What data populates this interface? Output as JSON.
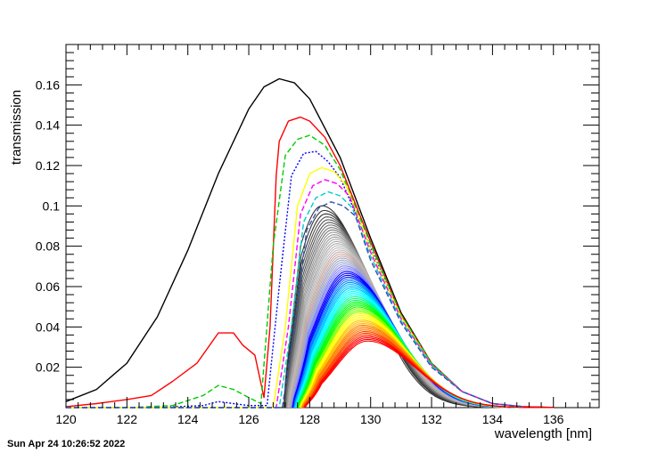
{
  "chart_data": {
    "type": "line",
    "title": "",
    "xlabel": "wavelength [nm]",
    "ylabel": "transmission",
    "xlim": [
      120,
      137.5
    ],
    "ylim": [
      0,
      0.18
    ],
    "x_ticks": [
      120,
      122,
      124,
      126,
      128,
      130,
      132,
      134,
      136
    ],
    "x_tick_labels": [
      "120",
      "122",
      "124",
      "126",
      "128",
      "130",
      "132",
      "134",
      "136"
    ],
    "y_ticks": [
      0.02,
      0.04,
      0.06,
      0.08,
      0.1,
      0.12,
      0.14,
      0.16
    ],
    "y_tick_labels": [
      "0.02",
      "0.04",
      "0.06",
      "0.08",
      "0.1",
      "0.12",
      "0.14",
      "0.16"
    ],
    "grid": false,
    "legend": "none",
    "series": [
      {
        "color": "#000000",
        "style": "solid",
        "x": [
          120,
          121,
          122,
          123,
          124,
          125,
          126,
          126.5,
          127,
          127.5,
          128,
          129,
          130,
          131,
          132,
          133,
          134,
          135,
          136
        ],
        "y": [
          0.003,
          0.009,
          0.022,
          0.045,
          0.078,
          0.116,
          0.148,
          0.159,
          0.163,
          0.161,
          0.153,
          0.124,
          0.084,
          0.047,
          0.022,
          0.008,
          0.002,
          0.0005,
          0.0001
        ]
      },
      {
        "color": "#ff0000",
        "style": "solid",
        "x": [
          120,
          121,
          122,
          122.8,
          123.5,
          124.3,
          125,
          125.5,
          125.8,
          126.2,
          126.5,
          126.7,
          126.9,
          127,
          127.3,
          127.7,
          128,
          128.5,
          129,
          130,
          131,
          132,
          133,
          134,
          135,
          136
        ],
        "y": [
          0.0005,
          0.002,
          0.004,
          0.006,
          0.013,
          0.022,
          0.037,
          0.037,
          0.031,
          0.026,
          0.005,
          0.04,
          0.115,
          0.132,
          0.142,
          0.144,
          0.142,
          0.134,
          0.12,
          0.082,
          0.046,
          0.022,
          0.008,
          0.002,
          0.0005,
          0.0001
        ]
      },
      {
        "color": "#00cc00",
        "style": "dashed",
        "x": [
          120,
          122,
          123.5,
          124.5,
          125,
          125.5,
          126,
          126.4,
          126.8,
          127.2,
          127.6,
          128,
          128.5,
          129,
          130,
          131,
          132,
          133,
          134,
          135
        ],
        "y": [
          0,
          0,
          0.001,
          0.006,
          0.011,
          0.009,
          0.005,
          0.002,
          0.08,
          0.125,
          0.133,
          0.135,
          0.13,
          0.118,
          0.081,
          0.046,
          0.022,
          0.008,
          0.002,
          0.0005
        ]
      },
      {
        "color": "#0000ff",
        "style": "dotted",
        "x": [
          120,
          123,
          124.5,
          125,
          125.5,
          126,
          126.6,
          127,
          127.4,
          127.8,
          128.2,
          128.6,
          129,
          130,
          131,
          132,
          133,
          134,
          135
        ],
        "y": [
          0,
          0,
          0.001,
          0.003,
          0.002,
          0.001,
          0.001,
          0.06,
          0.115,
          0.126,
          0.127,
          0.122,
          0.114,
          0.079,
          0.045,
          0.021,
          0.008,
          0.002,
          0.0005
        ]
      },
      {
        "color": "#ffff00",
        "style": "solid",
        "x": [
          120,
          126.8,
          127.2,
          127.6,
          128,
          128.4,
          128.8,
          129.2,
          130,
          131,
          132,
          133,
          134,
          135
        ],
        "y": [
          0,
          0,
          0.04,
          0.1,
          0.116,
          0.119,
          0.117,
          0.11,
          0.078,
          0.045,
          0.021,
          0.008,
          0.002,
          0.0005
        ]
      },
      {
        "color": "#ff00ff",
        "style": "dashed",
        "x": [
          120,
          126.9,
          127.3,
          127.7,
          128.1,
          128.5,
          128.9,
          129.3,
          130,
          131,
          132,
          133,
          134,
          135
        ],
        "y": [
          0,
          0,
          0.04,
          0.096,
          0.11,
          0.113,
          0.111,
          0.105,
          0.077,
          0.044,
          0.021,
          0.008,
          0.002,
          0.0005
        ]
      },
      {
        "color": "#00cccc",
        "style": "dashed",
        "x": [
          120,
          127,
          127.4,
          127.8,
          128.2,
          128.6,
          129,
          129.4,
          130,
          131,
          132,
          133,
          134,
          135
        ],
        "y": [
          0,
          0,
          0.04,
          0.092,
          0.104,
          0.107,
          0.105,
          0.099,
          0.075,
          0.043,
          0.021,
          0.008,
          0.002,
          0.0005
        ]
      },
      {
        "color": "#3355aa",
        "style": "dashed",
        "x": [
          120,
          127.1,
          127.5,
          127.9,
          128.3,
          128.7,
          129.1,
          129.5,
          130,
          131,
          132,
          133,
          134,
          135
        ],
        "y": [
          0,
          0,
          0.04,
          0.088,
          0.099,
          0.102,
          0.1,
          0.095,
          0.073,
          0.042,
          0.02,
          0.008,
          0.002,
          0.0005
        ]
      }
    ],
    "band": {
      "description": "",
      "count": 70,
      "start_peak": 0.1,
      "end_peak": 0.033,
      "start_peak_x": 128.4,
      "end_peak_x": 129.9,
      "gray_colors": [
        "#333333",
        "#555555",
        "#777777",
        "#999999",
        "#aaaaaa",
        "#bbbbbb"
      ],
      "rainbow_colors": [
        "#c8a8a0",
        "#a0a8c8",
        "#8080ff",
        "#0000ff",
        "#0080ff",
        "#00c0ff",
        "#00ffff",
        "#00ff80",
        "#00ff00",
        "#80ff00",
        "#ffff00",
        "#ffc000",
        "#ff8000",
        "#ff4000",
        "#ff0000"
      ]
    },
    "timestamp": "Sun Apr 24 10:26:52 2022"
  }
}
